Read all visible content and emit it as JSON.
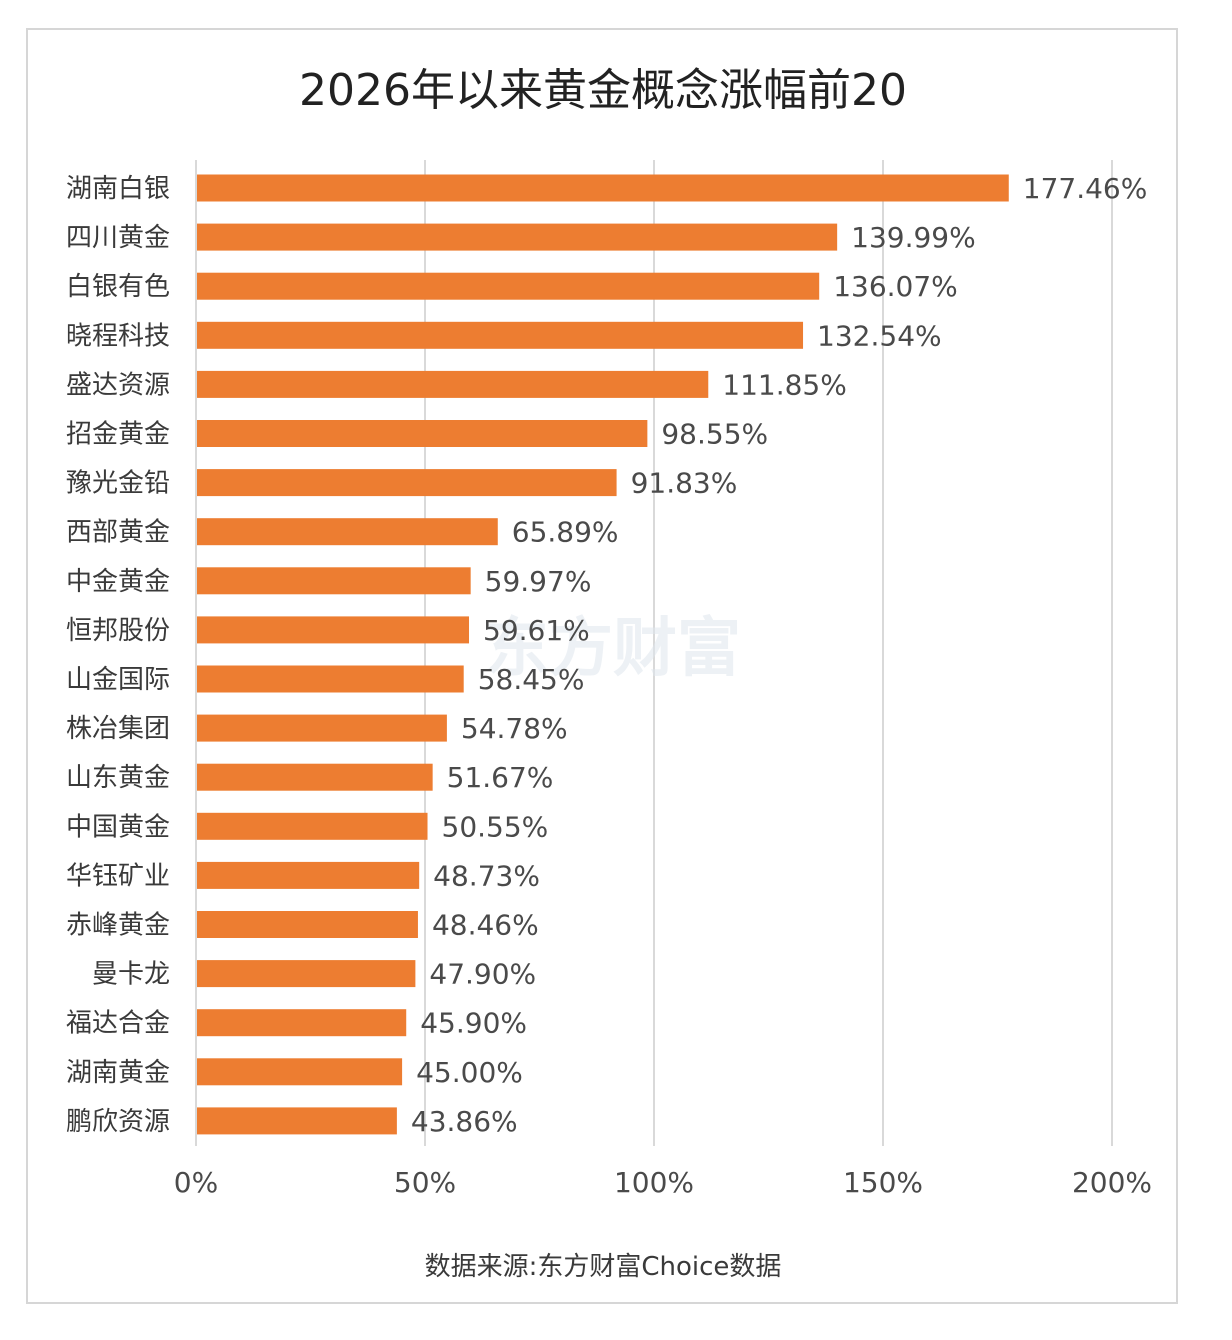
{
  "chart_data": {
    "type": "bar",
    "orientation": "horizontal",
    "title": "2026年以来黄金概念涨幅前20",
    "categories": [
      "湖南白银",
      "四川黄金",
      "白银有色",
      "晓程科技",
      "盛达资源",
      "招金黄金",
      "豫光金铅",
      "西部黄金",
      "中金黄金",
      "恒邦股份",
      "山金国际",
      "株冶集团",
      "山东黄金",
      "中国黄金",
      "华钰矿业",
      "赤峰黄金",
      "曼卡龙",
      "福达合金",
      "湖南黄金",
      "鹏欣资源"
    ],
    "values": [
      177.46,
      139.99,
      136.07,
      132.54,
      111.85,
      98.55,
      91.83,
      65.89,
      59.97,
      59.61,
      58.45,
      54.78,
      51.67,
      50.55,
      48.73,
      48.46,
      47.9,
      45.9,
      45.0,
      43.86
    ],
    "value_labels": [
      "177.46%",
      "139.99%",
      "136.07%",
      "132.54%",
      "111.85%",
      "98.55%",
      "91.83%",
      "65.89%",
      "59.97%",
      "59.61%",
      "58.45%",
      "54.78%",
      "51.67%",
      "50.55%",
      "48.73%",
      "48.46%",
      "47.90%",
      "45.90%",
      "45.00%",
      "43.86%"
    ],
    "x_ticks": [
      "0%",
      "50%",
      "100%",
      "150%",
      "200%"
    ],
    "x_tick_values": [
      0,
      50,
      100,
      150,
      200
    ],
    "xlim": [
      0,
      200
    ],
    "grid": true,
    "bar_color": "#ED7D31",
    "source": "数据来源:东方财富Choice数据",
    "watermark": "东方财富"
  }
}
